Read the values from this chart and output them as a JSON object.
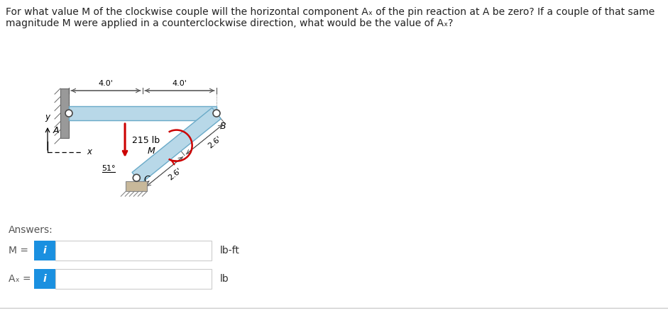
{
  "bg_color": "#ffffff",
  "beam_color": "#b8d8e8",
  "beam_stroke": "#6aaac8",
  "ground_color": "#c8b89a",
  "arrow_color": "#cc0000",
  "moment_color": "#cc0000",
  "dim_color": "#555555",
  "wall_color": "#888888",
  "box_bg": "#1a90e0",
  "title_line1": "For what value M of the clockwise couple will the horizontal component Aₓ of the pin reaction at A be zero? If a couple of that same",
  "title_line2": "magnitude M were applied in a counterclockwise direction, what would be the value of Aₓ?",
  "label_A": "A",
  "label_B": "B",
  "label_C": "C",
  "label_y": "y",
  "label_x": "x",
  "label_215": "215 lb",
  "label_40_left": "4.0'",
  "label_40_right": "4.0'",
  "label_26_top": "2.6'",
  "label_26_bot": "2.6'",
  "label_51": "51°",
  "label_M": "M",
  "answers_label": "Answers:",
  "M_label": "M =",
  "Ax_label": "Aₓ =",
  "unit_M": "lb-ft",
  "unit_Ax": "lb"
}
